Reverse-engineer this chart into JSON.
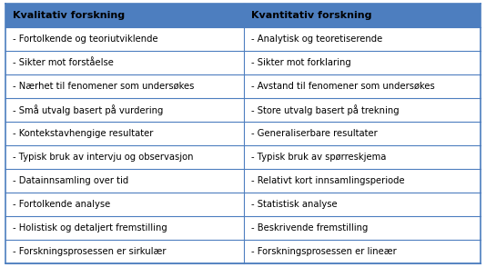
{
  "col1_header": "Kvalitativ forskning",
  "col2_header": "Kvantitativ forskning",
  "rows": [
    [
      "- Fortolkende og teoriutviklende",
      "- Analytisk og teoretiserende"
    ],
    [
      "- Sikter mot forståelse",
      "- Sikter mot forklaring"
    ],
    [
      "- Nærhet til fenomener som undersøkes",
      "- Avstand til fenomener som undersøkes"
    ],
    [
      "- Små utvalg basert på vurdering",
      "- Store utvalg basert på trekning"
    ],
    [
      "- Kontekstavhengige resultater",
      "- Generaliserbare resultater"
    ],
    [
      "- Typisk bruk av intervju og observasjon",
      "- Typisk bruk av spørreskjema"
    ],
    [
      "- Datainnsamling over tid",
      "- Relativt kort innsamlingsperiode"
    ],
    [
      "- Fortolkende analyse",
      "- Statistisk analyse"
    ],
    [
      "- Holistisk og detaljert fremstilling",
      "- Beskrivende fremstilling"
    ],
    [
      "- Forskningsprosessen er sirkulær",
      "- Forskningsprosessen er lineær"
    ]
  ],
  "header_bg": "#4d7ebf",
  "border_color": "#4d7ebf",
  "text_color": "#000000",
  "font_size": 7.2,
  "header_font_size": 8.0,
  "fig_width": 5.34,
  "fig_height": 2.94,
  "dpi": 100,
  "col_split": 0.502
}
